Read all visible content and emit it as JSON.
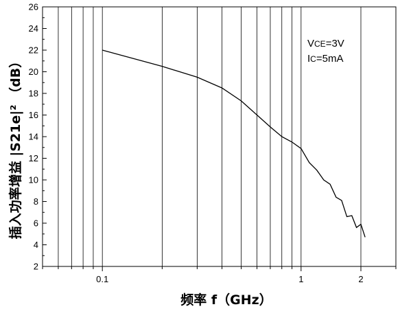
{
  "chart_data": {
    "type": "line",
    "title": "",
    "xlabel": "频率 f（GHz）",
    "ylabel": "插入功率增益 |S21e|² （dB）",
    "x_scale": "log",
    "xlim": [
      0.05,
      3
    ],
    "ylim": [
      2,
      26
    ],
    "x_ticks": [
      0.1,
      1,
      2
    ],
    "x_tick_labels": [
      "0.1",
      "1",
      "2"
    ],
    "y_ticks": [
      2,
      4,
      6,
      8,
      10,
      12,
      14,
      16,
      18,
      20,
      22,
      24,
      26
    ],
    "y_tick_labels": [
      "2",
      "4",
      "6",
      "8",
      "10",
      "12",
      "14",
      "16",
      "18",
      "20",
      "22",
      "24",
      "26"
    ],
    "grid": "vertical log grid",
    "legend": "none",
    "annotations": [
      "VCE=3V",
      "IC=5mA"
    ],
    "series": [
      {
        "x": [
          0.1,
          0.2,
          0.3,
          0.4,
          0.5,
          0.6,
          0.7,
          0.8,
          0.9,
          1.0,
          1.1,
          1.2,
          1.3,
          1.4,
          1.5,
          1.6,
          1.7,
          1.8,
          1.9,
          2.0,
          2.1
        ],
        "values": [
          22.0,
          20.5,
          19.5,
          18.5,
          17.3,
          16.0,
          14.9,
          14.0,
          13.5,
          12.9,
          11.6,
          10.9,
          10.0,
          9.6,
          8.4,
          8.1,
          6.6,
          6.7,
          5.6,
          5.9,
          4.7
        ]
      }
    ],
    "line_color": "#000000"
  }
}
